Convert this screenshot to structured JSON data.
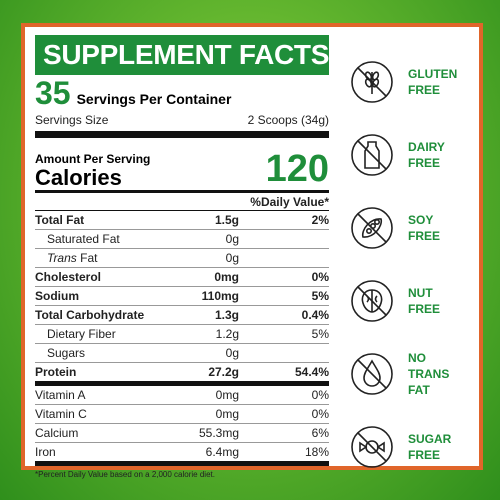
{
  "title": "SUPPLEMENT FACTS",
  "servings": {
    "count": "35",
    "label": "Servings Per Container"
  },
  "serving_size": {
    "label": "Servings Size",
    "value": "2 Scoops (34g)"
  },
  "amount": {
    "label": "Amount Per Serving",
    "calories_label": "Calories",
    "calories_value": "120"
  },
  "dv_header": "%Daily Value*",
  "nutrients": [
    {
      "name": "Total Fat",
      "amount": "1.5g",
      "dv": "2%"
    },
    {
      "name": "Saturated Fat",
      "amount": "0g",
      "dv": ""
    },
    {
      "name_italic": "Trans",
      "name": " Fat",
      "amount": "0g",
      "dv": ""
    },
    {
      "name": "Cholesterol",
      "amount": "0mg",
      "dv": "0%"
    },
    {
      "name": "Sodium",
      "amount": "110mg",
      "dv": "5%"
    },
    {
      "name": "Total Carbohydrate",
      "amount": "1.3g",
      "dv": "0.4%"
    },
    {
      "name": "Dietary Fiber",
      "amount": "1.2g",
      "dv": "5%"
    },
    {
      "name": "Sugars",
      "amount": "0g",
      "dv": ""
    },
    {
      "name": "Protein",
      "amount": "27.2g",
      "dv": "54.4%"
    },
    {
      "name": "Vitamin A",
      "amount": "0mg",
      "dv": "0%"
    },
    {
      "name": "Vitamin C",
      "amount": "0mg",
      "dv": "0%"
    },
    {
      "name": "Calcium",
      "amount": "55.3mg",
      "dv": "6%"
    },
    {
      "name": "Iron",
      "amount": "6.4mg",
      "dv": "18%"
    }
  ],
  "footnote": "*Percent Daily Value based on a 2,000 calorie diet.",
  "claims": [
    {
      "icon": "gluten-free-icon",
      "text": "GLUTEN\nFREE"
    },
    {
      "icon": "dairy-free-icon",
      "text": "DAIRY\nFREE"
    },
    {
      "icon": "soy-free-icon",
      "text": "SOY\nFREE"
    },
    {
      "icon": "nut-free-icon",
      "text": "NUT\nFREE"
    },
    {
      "icon": "no-trans-fat-icon",
      "text": "NO\nTRANS\nFAT"
    },
    {
      "icon": "sugar-free-icon",
      "text": "SUGAR\nFREE"
    }
  ],
  "colors": {
    "brand_green": "#1f8e3a",
    "border_orange": "#e0652a"
  }
}
